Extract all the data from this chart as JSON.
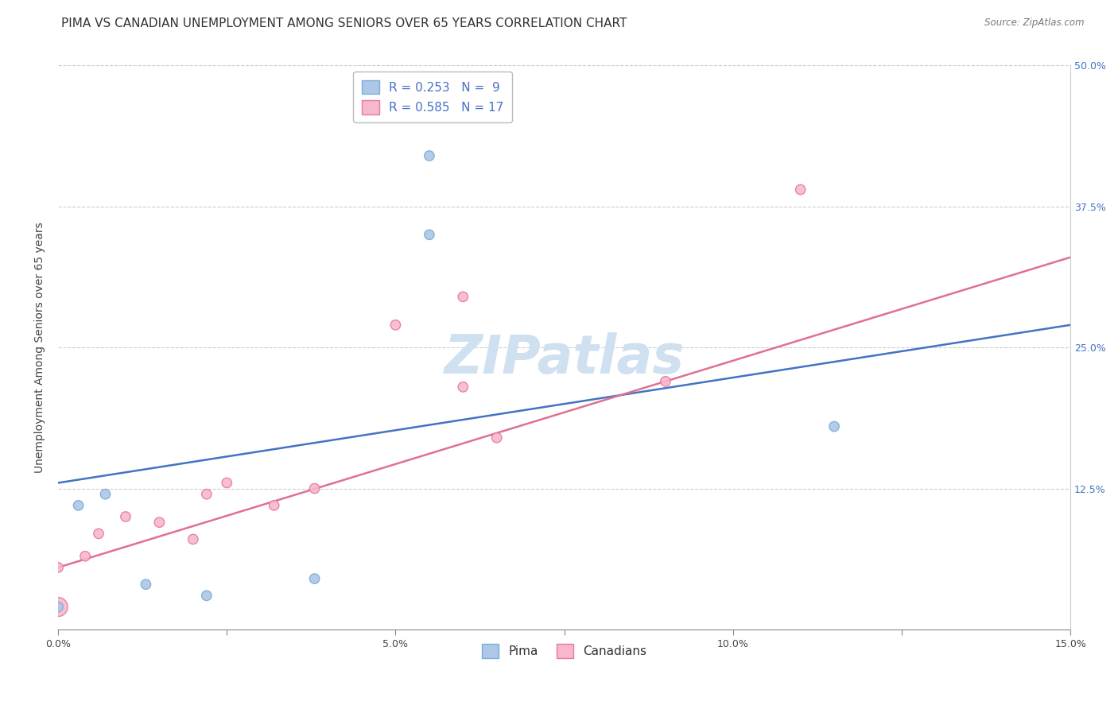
{
  "title": "PIMA VS CANADIAN UNEMPLOYMENT AMONG SENIORS OVER 65 YEARS CORRELATION CHART",
  "source": "Source: ZipAtlas.com",
  "ylabel": "Unemployment Among Seniors over 65 years",
  "xlim": [
    0.0,
    0.15
  ],
  "ylim": [
    0.0,
    0.5
  ],
  "xticks": [
    0.0,
    0.025,
    0.05,
    0.075,
    0.1,
    0.125,
    0.15
  ],
  "xticklabels": [
    "0.0%",
    "",
    "5.0%",
    "",
    "10.0%",
    "",
    "15.0%"
  ],
  "yticks": [
    0.0,
    0.125,
    0.25,
    0.375,
    0.5
  ],
  "yticklabels_right": [
    "",
    "12.5%",
    "25.0%",
    "37.5%",
    "50.0%"
  ],
  "pima_color": "#aec6e8",
  "pima_edge_color": "#7aafd4",
  "canadian_color": "#f7b8cc",
  "canadian_edge_color": "#e87a9f",
  "line_blue": "#4472c4",
  "line_pink": "#e07090",
  "legend_pima_label": "R = 0.253   N =  9",
  "legend_canadian_label": "R = 0.585   N = 17",
  "pima_x": [
    0.0,
    0.003,
    0.007,
    0.013,
    0.022,
    0.038,
    0.055,
    0.055,
    0.115
  ],
  "pima_y": [
    0.02,
    0.11,
    0.12,
    0.04,
    0.03,
    0.045,
    0.42,
    0.35,
    0.18
  ],
  "pima_s": [
    80,
    80,
    80,
    80,
    80,
    80,
    80,
    80,
    80
  ],
  "canadian_x": [
    0.0,
    0.0,
    0.004,
    0.006,
    0.01,
    0.015,
    0.02,
    0.022,
    0.025,
    0.032,
    0.038,
    0.05,
    0.06,
    0.06,
    0.065,
    0.09,
    0.11
  ],
  "canadian_y": [
    0.02,
    0.055,
    0.065,
    0.085,
    0.1,
    0.095,
    0.08,
    0.12,
    0.13,
    0.11,
    0.125,
    0.27,
    0.295,
    0.215,
    0.17,
    0.22,
    0.39
  ],
  "canadian_s": [
    300,
    80,
    80,
    80,
    80,
    80,
    80,
    80,
    80,
    80,
    80,
    80,
    80,
    80,
    80,
    80,
    80
  ],
  "pima_line_x": [
    0.0,
    0.15
  ],
  "pima_line_y": [
    0.13,
    0.27
  ],
  "canadian_line_x": [
    0.0,
    0.15
  ],
  "canadian_line_y": [
    0.055,
    0.33
  ],
  "background_color": "#ffffff",
  "grid_color": "#cccccc",
  "title_fontsize": 11,
  "axis_label_fontsize": 10,
  "tick_fontsize": 9,
  "legend_fontsize": 11,
  "watermark_text": "ZIPatlas",
  "watermark_color": "#cfe0f0",
  "bottom_legend_labels": [
    "Pima",
    "Canadians"
  ]
}
